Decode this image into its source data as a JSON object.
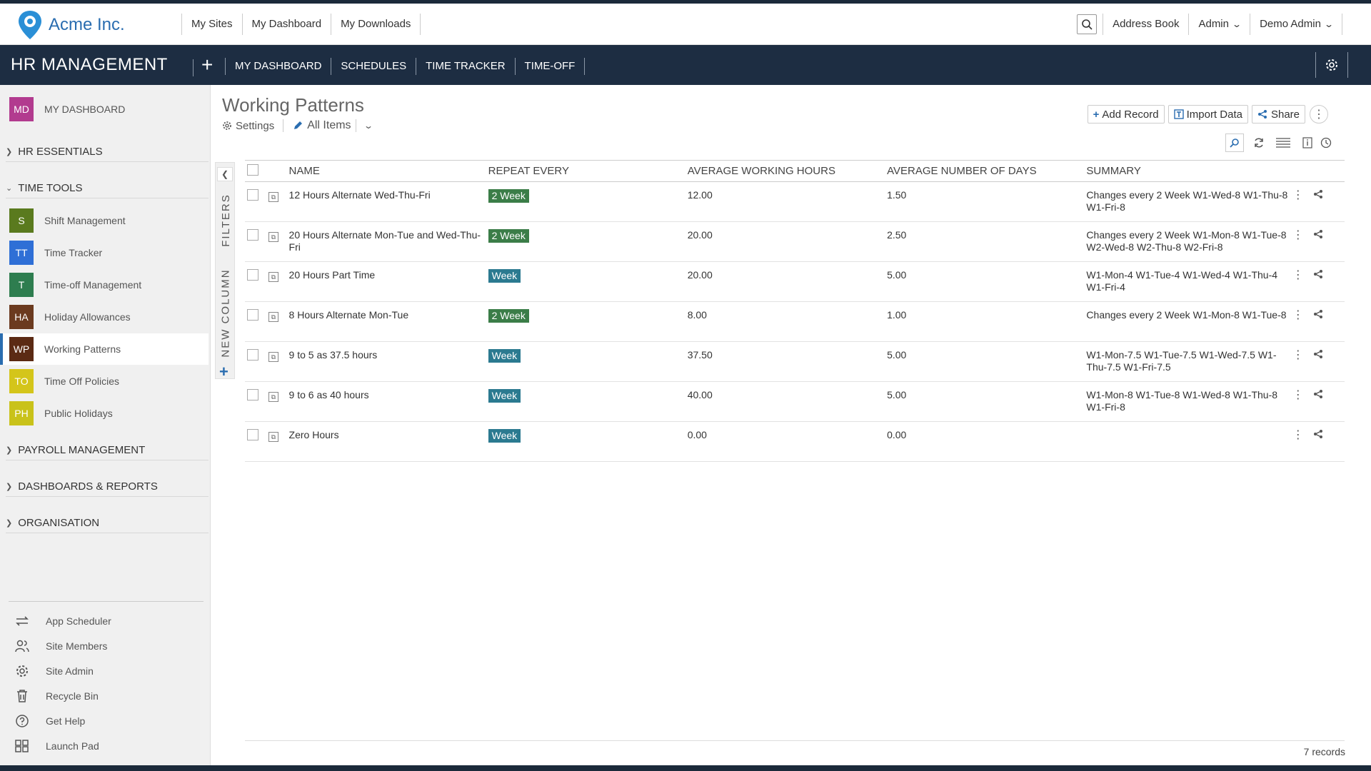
{
  "brand": {
    "name": "Acme Inc."
  },
  "topnav": {
    "links": [
      "My Sites",
      "My Dashboard",
      "My Downloads"
    ],
    "right_links": [
      "Address Book",
      "Admin",
      "Demo Admin"
    ]
  },
  "appbar": {
    "title": "HR MANAGEMENT",
    "nav": [
      "MY DASHBOARD",
      "SCHEDULES",
      "TIME TRACKER",
      "TIME-OFF"
    ]
  },
  "sidebar": {
    "dashboard": {
      "badge": "MD",
      "label": "MY DASHBOARD",
      "color": "#b23b8f"
    },
    "sections": [
      "HR ESSENTIALS",
      "TIME TOOLS",
      "PAYROLL MANAGEMENT",
      "DASHBOARDS & REPORTS",
      "ORGANISATION"
    ],
    "apps": [
      {
        "badge": "S",
        "label": "Shift Management",
        "color": "#5a7a1e"
      },
      {
        "badge": "TT",
        "label": "Time Tracker",
        "color": "#2f6fd6"
      },
      {
        "badge": "T",
        "label": "Time-off Management",
        "color": "#2e7d4f"
      },
      {
        "badge": "HA",
        "label": "Holiday Allowances",
        "color": "#6b3a1f"
      },
      {
        "badge": "WP",
        "label": "Working Patterns",
        "color": "#5b2a14"
      },
      {
        "badge": "TO",
        "label": "Time Off Policies",
        "color": "#d4c51a"
      },
      {
        "badge": "PH",
        "label": "Public Holidays",
        "color": "#c9c21a"
      }
    ],
    "tools": [
      "App Scheduler",
      "Site Members",
      "Site Admin",
      "Recycle Bin",
      "Get Help",
      "Launch Pad"
    ]
  },
  "page": {
    "title": "Working Patterns",
    "settings_label": "Settings",
    "view_label": "All Items",
    "actions": {
      "add": "Add Record",
      "import": "Import Data",
      "share": "Share"
    },
    "filters_label": "FILTERS",
    "new_column_label": "NEW COLUMN",
    "records_count": "7 records"
  },
  "table": {
    "columns": [
      "NAME",
      "REPEAT EVERY",
      "AVERAGE WORKING HOURS",
      "AVERAGE NUMBER OF DAYS",
      "SUMMARY"
    ],
    "rows": [
      {
        "name": "12 Hours Alternate Wed-Thu-Fri",
        "repeat": "2 Week",
        "hours": "12.00",
        "days": "1.50",
        "summary": "Changes every 2 Week W1-Wed-8 W1-Thu-8 W1-Fri-8"
      },
      {
        "name": "20 Hours Alternate Mon-Tue and Wed-Thu-Fri",
        "repeat": "2 Week",
        "hours": "20.00",
        "days": "2.50",
        "summary": "Changes every 2 Week W1-Mon-8 W1-Tue-8 W2-Wed-8 W2-Thu-8 W2-Fri-8"
      },
      {
        "name": "20 Hours Part Time",
        "repeat": "Week",
        "hours": "20.00",
        "days": "5.00",
        "summary": "W1-Mon-4 W1-Tue-4 W1-Wed-4 W1-Thu-4 W1-Fri-4"
      },
      {
        "name": "8 Hours Alternate Mon-Tue",
        "repeat": "2 Week",
        "hours": "8.00",
        "days": "1.00",
        "summary": "Changes every 2 Week W1-Mon-8 W1-Tue-8"
      },
      {
        "name": "9 to 5 as 37.5 hours",
        "repeat": "Week",
        "hours": "37.50",
        "days": "5.00",
        "summary": "W1-Mon-7.5 W1-Tue-7.5 W1-Wed-7.5 W1-Thu-7.5 W1-Fri-7.5"
      },
      {
        "name": "9 to 6 as 40 hours",
        "repeat": "Week",
        "hours": "40.00",
        "days": "5.00",
        "summary": "W1-Mon-8 W1-Tue-8 W1-Wed-8 W1-Thu-8 W1-Fri-8"
      },
      {
        "name": "Zero Hours",
        "repeat": "Week",
        "hours": "0.00",
        "days": "0.00",
        "summary": ""
      }
    ]
  }
}
